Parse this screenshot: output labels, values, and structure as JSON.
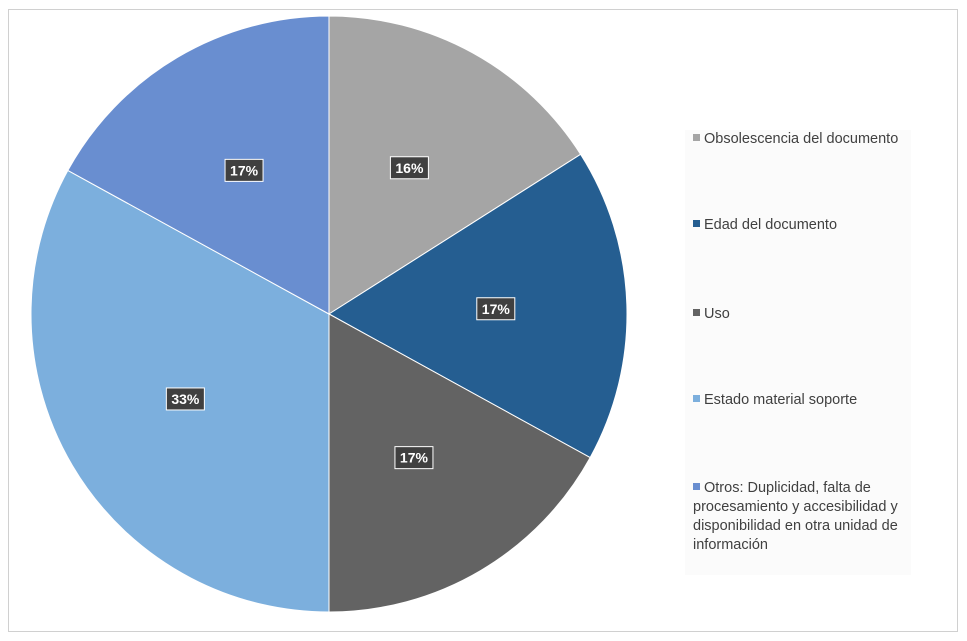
{
  "chart_data": {
    "type": "pie",
    "title": "",
    "start_angle_deg": 0,
    "direction": "clockwise",
    "legend_position": "right",
    "slices": [
      {
        "label": "Obsolescencia del documento",
        "value": 16,
        "display": "16%",
        "color": "#a5a5a5"
      },
      {
        "label": "Edad del documento",
        "value": 17,
        "display": "17%",
        "color": "#255e91"
      },
      {
        "label": "Uso",
        "value": 17,
        "display": "17%",
        "color": "#636363"
      },
      {
        "label": "Estado material soporte",
        "value": 33,
        "display": "33%",
        "color": "#7cafdd"
      },
      {
        "label": "Otros: Duplicidad, falta  de procesamiento y accesibilidad y disponibilidad en otra unidad de información",
        "value": 17,
        "display": "17%",
        "color": "#698ed0"
      }
    ]
  }
}
